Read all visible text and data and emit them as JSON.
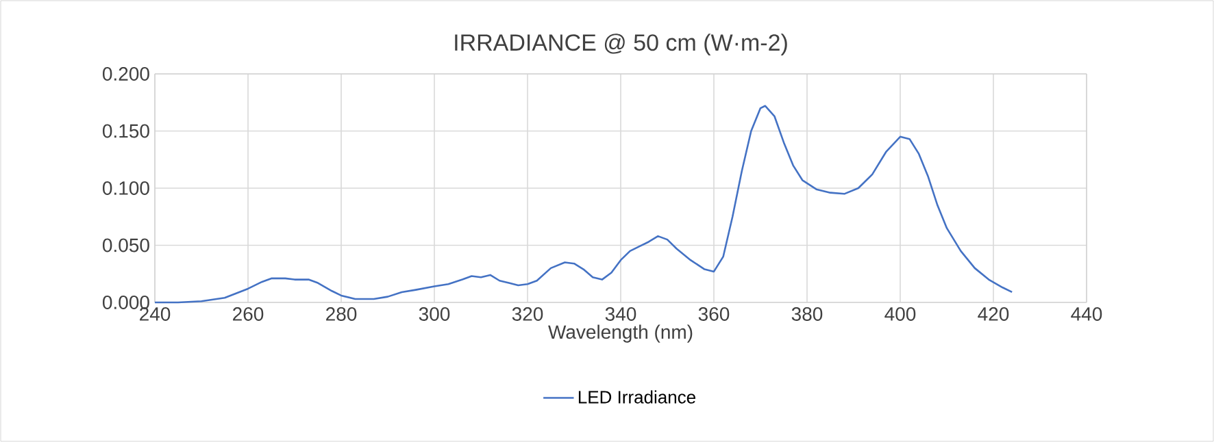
{
  "chart_data": {
    "type": "line",
    "title": "IRRADIANCE @ 50 cm (W·m-2)",
    "xlabel": "Wavelength (nm)",
    "xlim": [
      240,
      440
    ],
    "xticks": [
      240,
      260,
      280,
      300,
      320,
      340,
      360,
      380,
      400,
      420,
      440
    ],
    "ylim": [
      0,
      0.2
    ],
    "yticks": [
      {
        "value": 0,
        "label": "0.000"
      },
      {
        "value": 0.05,
        "label": "0.050"
      },
      {
        "value": 0.1,
        "label": "0.100"
      },
      {
        "value": 0.15,
        "label": "0.150"
      },
      {
        "value": 0.2,
        "label": "0.200"
      }
    ],
    "grid": true,
    "legend": "bottom",
    "marker": "none",
    "line_style": "solid",
    "series": [
      {
        "name": "LED Irradiance",
        "color": "#4472c4",
        "x": [
          240,
          245,
          250,
          255,
          260,
          263,
          265,
          268,
          270,
          273,
          275,
          278,
          280,
          283,
          287,
          290,
          293,
          296,
          300,
          303,
          306,
          308,
          310,
          312,
          314,
          316,
          318,
          320,
          322,
          325,
          328,
          330,
          332,
          334,
          336,
          338,
          340,
          342,
          344,
          346,
          348,
          350,
          352,
          355,
          358,
          360,
          362,
          364,
          366,
          368,
          370,
          371,
          373,
          375,
          377,
          379,
          382,
          385,
          388,
          391,
          394,
          397,
          400,
          402,
          404,
          406,
          408,
          410,
          413,
          416,
          419,
          422,
          424
        ],
        "values": [
          0,
          0,
          0.001,
          0.004,
          0.012,
          0.018,
          0.021,
          0.021,
          0.02,
          0.02,
          0.017,
          0.01,
          0.006,
          0.003,
          0.003,
          0.005,
          0.009,
          0.011,
          0.014,
          0.016,
          0.02,
          0.023,
          0.022,
          0.024,
          0.019,
          0.017,
          0.015,
          0.016,
          0.019,
          0.03,
          0.035,
          0.034,
          0.029,
          0.022,
          0.02,
          0.026,
          0.037,
          0.045,
          0.049,
          0.053,
          0.058,
          0.055,
          0.047,
          0.037,
          0.029,
          0.027,
          0.04,
          0.075,
          0.115,
          0.15,
          0.17,
          0.172,
          0.163,
          0.14,
          0.12,
          0.107,
          0.099,
          0.096,
          0.095,
          0.1,
          0.112,
          0.132,
          0.145,
          0.143,
          0.13,
          0.11,
          0.085,
          0.065,
          0.045,
          0.03,
          0.02,
          0.013,
          0.009
        ]
      }
    ]
  }
}
